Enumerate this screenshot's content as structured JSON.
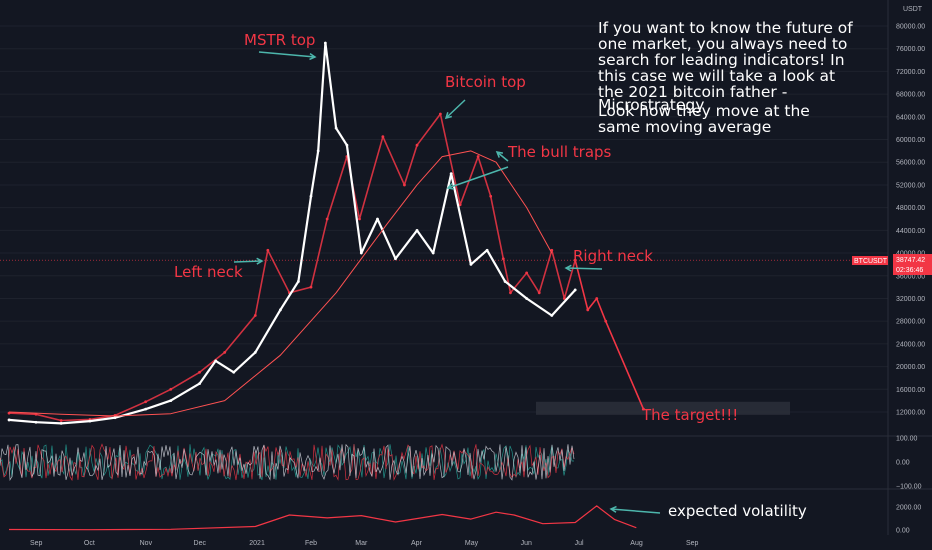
{
  "chart_data": {
    "type": "line",
    "symbol": "BTCUSDT",
    "price_axis_unit": "USDT",
    "last_price": "38747.42",
    "countdown": "02:36:46",
    "price_ticks": [
      "80000.00",
      "76000.00",
      "72000.00",
      "68000.00",
      "64000.00",
      "60000.00",
      "56000.00",
      "52000.00",
      "48000.00",
      "44000.00",
      "40000.00",
      "36000.00",
      "32000.00",
      "28000.00",
      "24000.00",
      "20000.00",
      "16000.00",
      "12000.00"
    ],
    "osc_ticks": [
      "100.00",
      "0.00",
      "−100.00"
    ],
    "vol_ticks": [
      "2000.00",
      "0.00"
    ],
    "time_labels": [
      "Sep",
      "Oct",
      "Nov",
      "Dec",
      "2021",
      "Feb",
      "Mar",
      "Apr",
      "May",
      "Jun",
      "Jul",
      "Aug",
      "Sep"
    ],
    "ylim": [
      10000,
      82000
    ],
    "series": [
      {
        "name": "BTCUSDT",
        "color": "#f23645",
        "x": [
          "2020-08-17",
          "2020-09-01",
          "2020-09-15",
          "2020-10-01",
          "2020-10-15",
          "2020-11-01",
          "2020-11-15",
          "2020-12-01",
          "2020-12-15",
          "2021-01-01",
          "2021-01-08",
          "2021-01-20",
          "2021-02-01",
          "2021-02-10",
          "2021-02-21",
          "2021-02-28",
          "2021-03-13",
          "2021-03-25",
          "2021-04-01",
          "2021-04-14",
          "2021-04-25",
          "2021-05-05",
          "2021-05-12",
          "2021-05-19",
          "2021-05-23",
          "2021-06-01",
          "2021-06-08",
          "2021-06-15",
          "2021-06-22",
          "2021-06-28"
        ],
        "y": [
          11800,
          11600,
          10500,
          10700,
          11400,
          13800,
          16000,
          19000,
          22500,
          29000,
          40500,
          33000,
          34000,
          46000,
          57000,
          46000,
          60500,
          52000,
          59000,
          64500,
          48500,
          57000,
          50000,
          39000,
          33000,
          36500,
          33000,
          40500,
          32000,
          38747
        ]
      },
      {
        "name": "MSTR",
        "color": "#ffffff",
        "x": [
          "2020-08-17",
          "2020-09-01",
          "2020-09-15",
          "2020-10-01",
          "2020-10-15",
          "2020-11-01",
          "2020-11-15",
          "2020-12-01",
          "2020-12-10",
          "2020-12-20",
          "2021-01-01",
          "2021-01-15",
          "2021-01-25",
          "2021-02-01",
          "2021-02-05",
          "2021-02-09",
          "2021-02-15",
          "2021-02-21",
          "2021-03-01",
          "2021-03-10",
          "2021-03-20",
          "2021-04-01",
          "2021-04-10",
          "2021-04-20",
          "2021-05-01",
          "2021-05-10",
          "2021-05-20",
          "2021-06-01",
          "2021-06-15",
          "2021-06-28"
        ],
        "y": [
          10600,
          10200,
          10000,
          10400,
          11000,
          12500,
          14000,
          17000,
          21000,
          19000,
          22500,
          30000,
          35000,
          50000,
          58000,
          77000,
          62000,
          59000,
          40000,
          46000,
          39000,
          44000,
          40000,
          54000,
          38000,
          40500,
          35000,
          32000,
          29000,
          33500
        ]
      },
      {
        "name": "moving average",
        "color": "#ff5252",
        "x": [
          "2020-08-17",
          "2020-09-15",
          "2020-10-15",
          "2020-11-15",
          "2020-12-15",
          "2021-01-15",
          "2021-02-15",
          "2021-03-15",
          "2021-04-01",
          "2021-04-15",
          "2021-05-01",
          "2021-05-15",
          "2021-06-01",
          "2021-06-15"
        ],
        "y": [
          12000,
          11600,
          11300,
          11700,
          14000,
          22000,
          33000,
          45000,
          52000,
          57000,
          58000,
          56000,
          48000,
          40000
        ]
      },
      {
        "name": "projection",
        "color": "#f23645",
        "x": [
          "2021-06-28",
          "2021-07-05",
          "2021-07-10",
          "2021-07-15",
          "2021-08-05"
        ],
        "y": [
          38747,
          30000,
          32000,
          28000,
          12500
        ]
      },
      {
        "name": "expected volatility",
        "color": "#f23645",
        "x": [
          "2020-08-17",
          "2020-10-01",
          "2020-11-15",
          "2021-01-01",
          "2021-01-20",
          "2021-02-10",
          "2021-03-01",
          "2021-03-20",
          "2021-04-15",
          "2021-05-01",
          "2021-05-15",
          "2021-05-25",
          "2021-06-10",
          "2021-06-28",
          "2021-07-10",
          "2021-07-20",
          "2021-08-01"
        ],
        "y": [
          40,
          30,
          60,
          300,
          1300,
          1050,
          1250,
          700,
          1350,
          950,
          1550,
          1300,
          550,
          650,
          2100,
          900,
          200
        ]
      }
    ],
    "oscillator": {
      "range": [
        -100,
        100
      ],
      "colors": [
        "#26a69a",
        "#f23645",
        "#d1d4dc"
      ]
    },
    "target_zone": {
      "label": "The target!!!",
      "low": 11500,
      "high": 13800
    },
    "annotations": {
      "mstr_top": "MSTR top",
      "bitcoin_top": "Bitcoin top",
      "bull_traps": "The bull traps",
      "left_neck": "Left neck",
      "right_neck": "Right neck",
      "target": "The target!!!",
      "expected_volatility": "expected volatility"
    },
    "note_lines": [
      "If you want to know the future of",
      "one market, you always need to",
      "search for leading indicators! In",
      "this case we will take a look at",
      "the  2021 bitcoin father -",
      "Microstrategy",
      " Look how they move at the",
      "same moving average"
    ],
    "colors": {
      "background": "#131722",
      "bear": "#f23645",
      "bull": "#26a69a",
      "teal": "#4db6ac",
      "axis_text": "#b2b5be"
    }
  }
}
